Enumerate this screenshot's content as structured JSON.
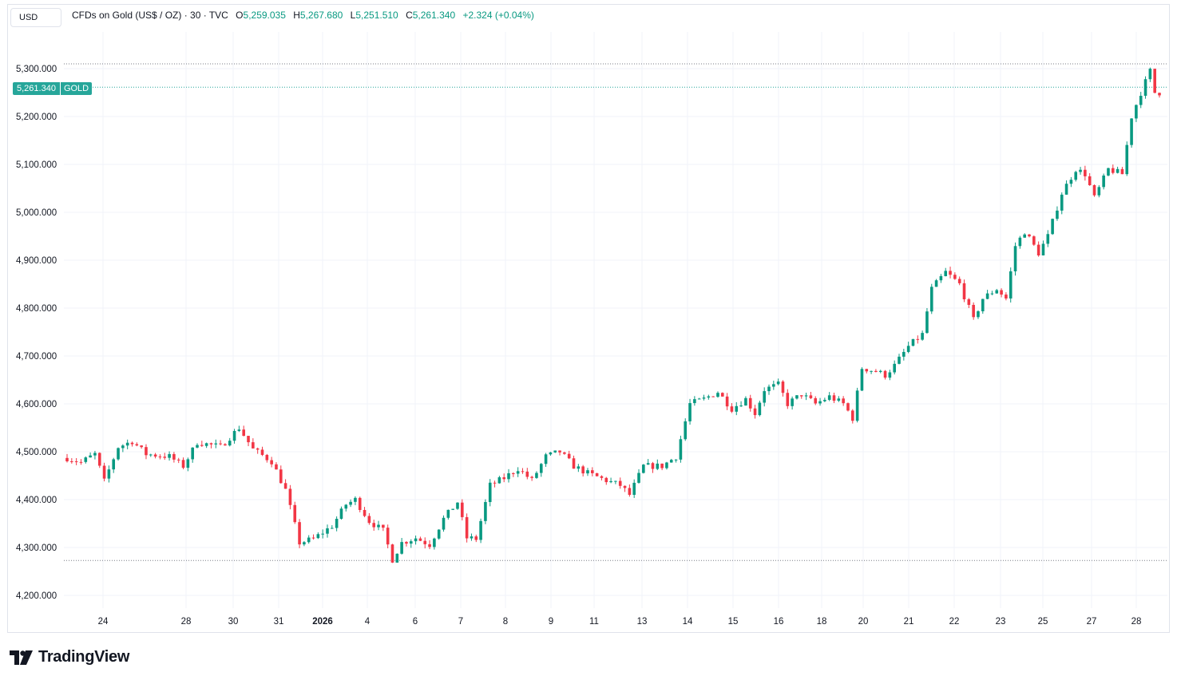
{
  "currency_button": "USD",
  "legend": {
    "symbol_desc": "CFDs on Gold (US$ / OZ) · 30 · TVC",
    "open_label": "O",
    "open": "5,259.035",
    "high_label": "H",
    "high": "5,267.680",
    "low_label": "L",
    "low": "5,251.510",
    "close_label": "C",
    "close": "5,261.340",
    "change": "+2.324 (+0.04%)"
  },
  "price_tag": {
    "value": "5,261.340",
    "symbol": "GOLD"
  },
  "brand": {
    "name": "TradingView"
  },
  "colors": {
    "up": "#089981",
    "down": "#f23645",
    "grid": "#f0f3fa",
    "accent": "#26a69a"
  },
  "chart_data": {
    "type": "candlestick",
    "ylabels": [
      "5,300.000",
      "5,200.000",
      "5,100.000",
      "5,000.000",
      "4,900.000",
      "4,800.000",
      "4,700.000",
      "4,600.000",
      "4,500.000",
      "4,400.000",
      "4,300.000",
      "4,200.000"
    ],
    "yvalues": [
      5300,
      5200,
      5100,
      5000,
      4900,
      4800,
      4700,
      4600,
      4500,
      4400,
      4300,
      4200
    ],
    "xlabels": [
      "24",
      "28",
      "30",
      "31",
      "2026",
      "4",
      "6",
      "7",
      "8",
      "9",
      "11",
      "13",
      "14",
      "15",
      "16",
      "18",
      "20",
      "21",
      "22",
      "23",
      "25",
      "27",
      "28"
    ],
    "high_line": 5310,
    "low_line": 4273,
    "last_price": 5261.34,
    "path": [
      [
        0,
        4487
      ],
      [
        3,
        4478
      ],
      [
        6,
        4495
      ],
      [
        8,
        4438
      ],
      [
        11,
        4510
      ],
      [
        14,
        4522
      ],
      [
        17,
        4495
      ],
      [
        22,
        4490
      ],
      [
        25,
        4470
      ],
      [
        28,
        4520
      ],
      [
        33,
        4510
      ],
      [
        37,
        4550
      ],
      [
        40,
        4505
      ],
      [
        44,
        4480
      ],
      [
        47,
        4420
      ],
      [
        50,
        4310
      ],
      [
        53,
        4318
      ],
      [
        57,
        4345
      ],
      [
        60,
        4390
      ],
      [
        62,
        4400
      ],
      [
        65,
        4355
      ],
      [
        68,
        4335
      ],
      [
        70,
        4275
      ],
      [
        72,
        4310
      ],
      [
        75,
        4320
      ],
      [
        78,
        4306
      ],
      [
        81,
        4360
      ],
      [
        84,
        4395
      ],
      [
        86,
        4320
      ],
      [
        88,
        4318
      ],
      [
        91,
        4430
      ],
      [
        94,
        4445
      ],
      [
        97,
        4465
      ],
      [
        100,
        4440
      ],
      [
        103,
        4490
      ],
      [
        106,
        4500
      ],
      [
        109,
        4470
      ],
      [
        112,
        4455
      ],
      [
        116,
        4440
      ],
      [
        119,
        4430
      ],
      [
        121,
        4410
      ],
      [
        124,
        4470
      ],
      [
        128,
        4470
      ],
      [
        131,
        4490
      ],
      [
        134,
        4600
      ],
      [
        137,
        4610
      ],
      [
        140,
        4625
      ],
      [
        143,
        4590
      ],
      [
        146,
        4610
      ],
      [
        148,
        4580
      ],
      [
        150,
        4630
      ],
      [
        153,
        4640
      ],
      [
        155,
        4600
      ],
      [
        158,
        4620
      ],
      [
        161,
        4600
      ],
      [
        164,
        4615
      ],
      [
        167,
        4600
      ],
      [
        169,
        4570
      ],
      [
        171,
        4675
      ],
      [
        174,
        4668
      ],
      [
        176,
        4660
      ],
      [
        178,
        4680
      ],
      [
        181,
        4720
      ],
      [
        184,
        4745
      ],
      [
        186,
        4840
      ],
      [
        189,
        4875
      ],
      [
        192,
        4850
      ],
      [
        195,
        4775
      ],
      [
        197,
        4820
      ],
      [
        200,
        4840
      ],
      [
        202,
        4820
      ],
      [
        204,
        4930
      ],
      [
        206,
        4960
      ],
      [
        209,
        4915
      ],
      [
        211,
        4950
      ],
      [
        214,
        5040
      ],
      [
        217,
        5090
      ],
      [
        219,
        5080
      ],
      [
        221,
        5030
      ],
      [
        224,
        5090
      ],
      [
        227,
        5080
      ],
      [
        229,
        5200
      ],
      [
        231,
        5250
      ],
      [
        233,
        5295
      ],
      [
        234,
        5250
      ]
    ]
  }
}
